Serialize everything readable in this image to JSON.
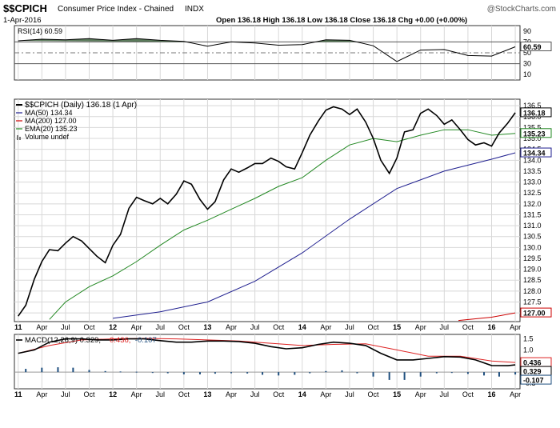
{
  "header": {
    "symbol": "$$CPICH",
    "name": "Consumer Price Index - Chained",
    "exchange": "INDX",
    "date": "1-Apr-2016",
    "quote": "Open 136.18  High 136.18  Low 136.18  Close 136.18  Chg +0.00 (+0.00%)",
    "watermark": "@StockCharts.com"
  },
  "colors": {
    "price": "#000000",
    "ma50": "#1f1f8f",
    "ma200": "#cc0000",
    "ema20": "#228822",
    "rsi_fill": "#5b7b5b",
    "macd_line": "#000000",
    "macd_signal": "#dd2222",
    "macd_hist": "#1f4f7f",
    "grid": "#d8d8d8"
  },
  "chart_data": [
    {
      "type": "line",
      "panel": "rsi",
      "legend": "RSI(14) 60.59",
      "ylim": [
        0,
        100
      ],
      "ytick_labels": [
        "90",
        "70",
        "50",
        "30",
        "10"
      ],
      "ytick_values": [
        90,
        70,
        50,
        30,
        10
      ],
      "overbought": 70,
      "oversold": 30,
      "current_label": "60.59",
      "x": [
        2011.0,
        2011.25,
        2011.5,
        2011.75,
        2012.0,
        2012.25,
        2012.5,
        2012.75,
        2013.0,
        2013.25,
        2013.5,
        2013.75,
        2014.0,
        2014.25,
        2014.5,
        2014.75,
        2015.0,
        2015.25,
        2015.5,
        2015.75,
        2016.0,
        2016.25
      ],
      "values": [
        72,
        75,
        74,
        76,
        73,
        76,
        73,
        71,
        62,
        70,
        68,
        64,
        65,
        74,
        73,
        63,
        34,
        55,
        56,
        45,
        44,
        61
      ]
    },
    {
      "type": "line",
      "panel": "price",
      "legend": [
        {
          "name": "$$CPICH (Daily) 136.18 (1 Apr)",
          "series": "price"
        },
        {
          "name": "MA(50) 134.34",
          "series": "ma50"
        },
        {
          "name": "MA(200) 127.00",
          "series": "ma200"
        },
        {
          "name": "EMA(20) 135.23",
          "series": "ema20"
        },
        {
          "name": "Volume undef",
          "series": "volume"
        }
      ],
      "ylim": [
        126.6,
        136.8
      ],
      "ytick_values": [
        127.0,
        127.5,
        128.0,
        128.5,
        129.0,
        129.5,
        130.0,
        130.5,
        131.0,
        131.5,
        132.0,
        132.5,
        133.0,
        133.5,
        134.0,
        134.5,
        135.0,
        135.5,
        136.0,
        136.5
      ],
      "ytick_labels": [
        "127.0",
        "127.5",
        "128.0",
        "128.5",
        "129.0",
        "129.5",
        "130.0",
        "130.5",
        "131.0",
        "131.5",
        "132.0",
        "132.5",
        "133.0",
        "133.5",
        "134.0",
        "134.5",
        "135.0",
        "135.5",
        "136.0",
        "136.5"
      ],
      "last_value_labels": [
        {
          "text": "136.18",
          "value": 136.18,
          "series": "price"
        },
        {
          "text": "135.23",
          "value": 135.23,
          "series": "ema20"
        },
        {
          "text": "134.34",
          "value": 134.34,
          "series": "ma50"
        },
        {
          "text": "127.00",
          "value": 127.0,
          "series": "ma200"
        }
      ],
      "series": [
        {
          "name": "price",
          "x": [
            2011.0,
            2011.08,
            2011.17,
            2011.25,
            2011.33,
            2011.42,
            2011.5,
            2011.58,
            2011.67,
            2011.75,
            2011.83,
            2011.92,
            2012.0,
            2012.08,
            2012.17,
            2012.25,
            2012.33,
            2012.42,
            2012.5,
            2012.58,
            2012.67,
            2012.75,
            2012.83,
            2012.92,
            2013.0,
            2013.08,
            2013.17,
            2013.25,
            2013.33,
            2013.42,
            2013.5,
            2013.58,
            2013.67,
            2013.75,
            2013.83,
            2013.92,
            2014.0,
            2014.08,
            2014.17,
            2014.25,
            2014.33,
            2014.42,
            2014.5,
            2014.58,
            2014.67,
            2014.75,
            2014.83,
            2014.92,
            2015.0,
            2015.08,
            2015.17,
            2015.25,
            2015.33,
            2015.42,
            2015.5,
            2015.58,
            2015.67,
            2015.75,
            2015.83,
            2015.92,
            2016.0,
            2016.08,
            2016.17,
            2016.25
          ],
          "values": [
            126.85,
            127.35,
            128.55,
            129.35,
            129.9,
            129.85,
            130.2,
            130.5,
            130.3,
            129.95,
            129.6,
            129.3,
            130.1,
            130.6,
            131.8,
            132.3,
            132.15,
            132.0,
            132.25,
            132.0,
            132.45,
            133.05,
            132.9,
            132.2,
            131.75,
            132.1,
            133.1,
            133.6,
            133.45,
            133.65,
            133.85,
            133.85,
            134.1,
            133.95,
            133.7,
            133.6,
            134.35,
            135.15,
            135.8,
            136.3,
            136.45,
            136.35,
            136.1,
            136.35,
            135.75,
            135.0,
            134.0,
            133.4,
            134.1,
            135.3,
            135.4,
            136.15,
            136.35,
            136.05,
            135.65,
            135.85,
            135.4,
            134.95,
            134.7,
            134.8,
            134.65,
            135.25,
            135.7,
            136.18
          ]
        },
        {
          "name": "ma50",
          "x": [
            2012.0,
            2012.5,
            2013.0,
            2013.5,
            2014.0,
            2014.5,
            2015.0,
            2015.5,
            2016.0,
            2016.25
          ],
          "values": [
            126.75,
            127.05,
            127.5,
            128.45,
            129.75,
            131.3,
            132.7,
            133.5,
            134.05,
            134.34
          ]
        },
        {
          "name": "ma200",
          "x": [
            2015.65,
            2016.0,
            2016.25
          ],
          "values": [
            126.65,
            126.8,
            127.0
          ]
        },
        {
          "name": "ema20",
          "x": [
            2011.33,
            2011.5,
            2011.75,
            2012.0,
            2012.25,
            2012.5,
            2012.75,
            2013.0,
            2013.25,
            2013.5,
            2013.75,
            2014.0,
            2014.25,
            2014.5,
            2014.75,
            2015.0,
            2015.25,
            2015.5,
            2015.75,
            2016.0,
            2016.25
          ],
          "values": [
            126.7,
            127.5,
            128.2,
            128.7,
            129.35,
            130.1,
            130.8,
            131.25,
            131.75,
            132.25,
            132.8,
            133.2,
            134.0,
            134.7,
            135.0,
            134.85,
            135.15,
            135.4,
            135.4,
            135.15,
            135.23
          ]
        }
      ]
    },
    {
      "type": "line",
      "panel": "macd",
      "legend": [
        {
          "name": "MACD(12,26,9) 0.329",
          "series": "macd"
        },
        {
          "name": "0.436",
          "series": "signal"
        },
        {
          "name": "-0.107",
          "series": "histogram"
        }
      ],
      "ylim": [
        -0.75,
        1.7
      ],
      "ytick_values": [
        1.5,
        1.0,
        0.5,
        0.0,
        -0.5
      ],
      "ytick_labels": [
        "1.5",
        "1.0",
        "0.5",
        "0.0",
        "-0.5"
      ],
      "last_value_labels": [
        {
          "text": "0.436",
          "value": 0.436,
          "series": "signal"
        },
        {
          "text": "0.329",
          "value": 0.329,
          "series": "macd"
        },
        {
          "text": "-0.107",
          "value": -0.107,
          "series": "histogram"
        }
      ],
      "series": [
        {
          "name": "macd",
          "x": [
            2011.0,
            2011.17,
            2011.33,
            2011.5,
            2011.67,
            2011.83,
            2012.0,
            2012.17,
            2012.33,
            2012.5,
            2012.67,
            2012.83,
            2013.0,
            2013.17,
            2013.33,
            2013.5,
            2013.67,
            2013.83,
            2014.0,
            2014.17,
            2014.33,
            2014.5,
            2014.67,
            2014.83,
            2015.0,
            2015.17,
            2015.33,
            2015.5,
            2015.67,
            2015.83,
            2016.0,
            2016.17,
            2016.25
          ],
          "values": [
            0.85,
            1.0,
            1.35,
            1.5,
            1.5,
            1.45,
            1.45,
            1.5,
            1.5,
            1.42,
            1.35,
            1.35,
            1.4,
            1.4,
            1.38,
            1.3,
            1.15,
            1.05,
            1.1,
            1.25,
            1.35,
            1.3,
            1.2,
            0.85,
            0.55,
            0.55,
            0.62,
            0.7,
            0.68,
            0.55,
            0.3,
            0.29,
            0.329
          ]
        },
        {
          "name": "signal",
          "x": [
            2011.0,
            2011.33,
            2011.67,
            2012.0,
            2012.33,
            2012.67,
            2013.0,
            2013.33,
            2013.67,
            2014.0,
            2014.33,
            2014.67,
            2015.0,
            2015.33,
            2015.67,
            2016.0,
            2016.25
          ],
          "values": [
            0.85,
            1.2,
            1.45,
            1.5,
            1.52,
            1.5,
            1.45,
            1.4,
            1.3,
            1.2,
            1.25,
            1.28,
            1.0,
            0.72,
            0.72,
            0.5,
            0.436
          ]
        },
        {
          "name": "histogram",
          "x": [
            2011.08,
            2011.25,
            2011.42,
            2011.58,
            2011.75,
            2011.92,
            2012.08,
            2012.25,
            2012.42,
            2012.58,
            2012.75,
            2012.92,
            2013.08,
            2013.25,
            2013.42,
            2013.58,
            2013.75,
            2013.92,
            2014.08,
            2014.25,
            2014.42,
            2014.58,
            2014.75,
            2014.92,
            2015.08,
            2015.25,
            2015.42,
            2015.58,
            2015.75,
            2015.92,
            2016.08,
            2016.25
          ],
          "values": [
            0.15,
            0.2,
            0.22,
            0.2,
            0.1,
            0.05,
            0.03,
            0.02,
            0.0,
            -0.05,
            -0.1,
            -0.1,
            -0.07,
            -0.05,
            -0.06,
            -0.12,
            -0.15,
            -0.12,
            -0.05,
            0.05,
            0.08,
            -0.05,
            -0.2,
            -0.35,
            -0.35,
            -0.2,
            -0.05,
            -0.02,
            -0.08,
            -0.15,
            -0.2,
            -0.107
          ]
        }
      ]
    }
  ],
  "xaxis": {
    "domain": [
      2010.96,
      2016.3
    ],
    "ticks": [
      {
        "label": "11",
        "x": 2011.0,
        "major": true
      },
      {
        "label": "Apr",
        "x": 2011.25,
        "major": false
      },
      {
        "label": "Jul",
        "x": 2011.5,
        "major": false
      },
      {
        "label": "Oct",
        "x": 2011.75,
        "major": false
      },
      {
        "label": "12",
        "x": 2012.0,
        "major": true
      },
      {
        "label": "Apr",
        "x": 2012.25,
        "major": false
      },
      {
        "label": "Jul",
        "x": 2012.5,
        "major": false
      },
      {
        "label": "Oct",
        "x": 2012.75,
        "major": false
      },
      {
        "label": "13",
        "x": 2013.0,
        "major": true
      },
      {
        "label": "Apr",
        "x": 2013.25,
        "major": false
      },
      {
        "label": "Jul",
        "x": 2013.5,
        "major": false
      },
      {
        "label": "Oct",
        "x": 2013.75,
        "major": false
      },
      {
        "label": "14",
        "x": 2014.0,
        "major": true
      },
      {
        "label": "Apr",
        "x": 2014.25,
        "major": false
      },
      {
        "label": "Jul",
        "x": 2014.5,
        "major": false
      },
      {
        "label": "Oct",
        "x": 2014.75,
        "major": false
      },
      {
        "label": "15",
        "x": 2015.0,
        "major": true
      },
      {
        "label": "Apr",
        "x": 2015.25,
        "major": false
      },
      {
        "label": "Jul",
        "x": 2015.5,
        "major": false
      },
      {
        "label": "Oct",
        "x": 2015.75,
        "major": false
      },
      {
        "label": "16",
        "x": 2016.0,
        "major": true
      },
      {
        "label": "Apr",
        "x": 2016.25,
        "major": false
      }
    ]
  }
}
